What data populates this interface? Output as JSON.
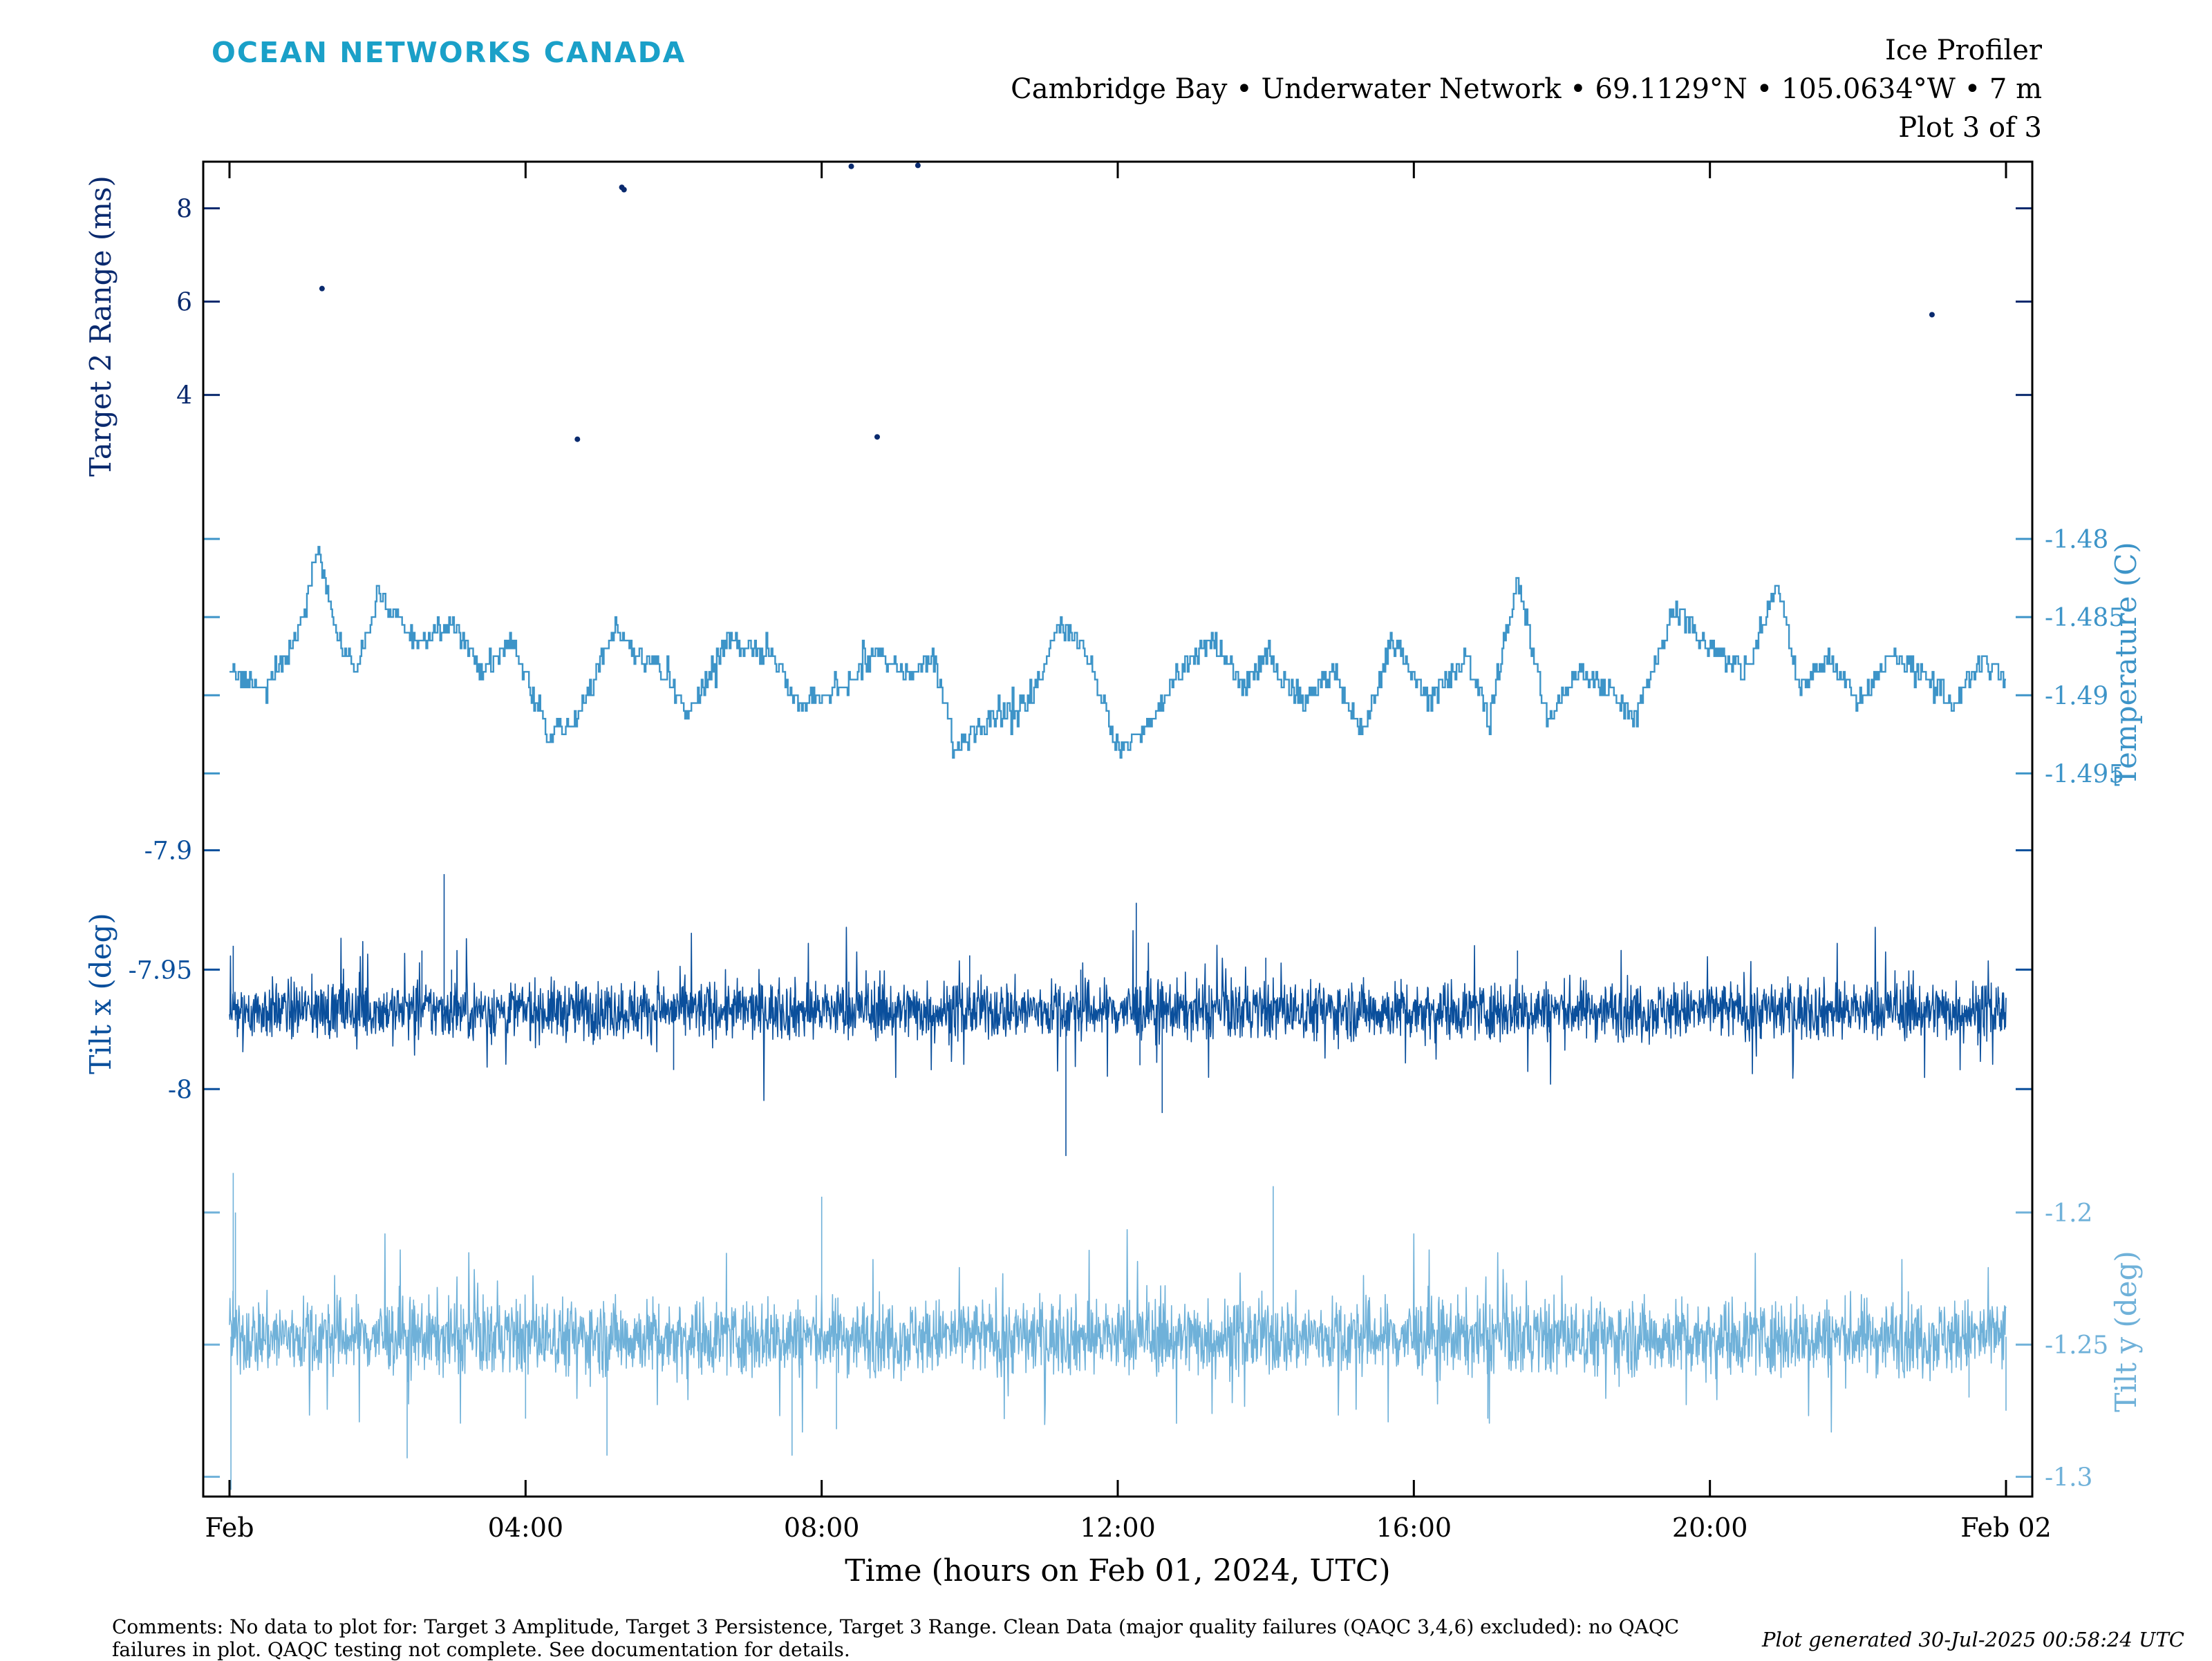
{
  "header": {
    "logo_text": "OCEAN NETWORKS CANADA",
    "instrument": "Ice Profiler",
    "location_line": "Cambridge Bay • Underwater Network • 69.1129°N • 105.0634°W • 7 m",
    "plot_index": "Plot 3 of 3"
  },
  "footer": {
    "comments": "Comments: No data to plot for: Target 3 Amplitude, Target 3 Persistence, Target 3 Range. Clean Data (major quality failures (QAQC 3,4,6) excluded): no QAQC failures in plot. QAQC testing not complete. See documentation for details.",
    "generated": "Plot generated 30-Jul-2025 00:58:24 UTC"
  },
  "colors": {
    "navy": "#0a2a6e",
    "temperature": "#3d94c8",
    "tilt_x": "#0a4f9c",
    "tilt_y": "#6fb1d9",
    "logo": "#1aa0c8"
  },
  "chart_data": {
    "type": "line",
    "xlabel": "Time (hours on Feb 01, 2024, UTC)",
    "x_range_hours": [
      0,
      24
    ],
    "x_ticks": [
      {
        "hour": 0,
        "label": "Feb"
      },
      {
        "hour": 4,
        "label": "04:00"
      },
      {
        "hour": 8,
        "label": "08:00"
      },
      {
        "hour": 12,
        "label": "12:00"
      },
      {
        "hour": 16,
        "label": "16:00"
      },
      {
        "hour": 20,
        "label": "20:00"
      },
      {
        "hour": 24,
        "label": "Feb 02"
      }
    ],
    "panels": [
      {
        "id": "target2",
        "ylabel": "Target 2 Range (ms)",
        "axis_side": "left",
        "color": "#0a2a6e",
        "ylim": [
          1.95,
          9.0
        ],
        "yticks": [
          4,
          6,
          8
        ],
        "ytick_labels": [
          "4",
          "6",
          "8"
        ],
        "style": "points",
        "points": [
          [
            1.25,
            6.28
          ],
          [
            4.7,
            3.05
          ],
          [
            5.3,
            8.45
          ],
          [
            5.33,
            8.4
          ],
          [
            8.4,
            8.9
          ],
          [
            8.75,
            3.1
          ],
          [
            9.3,
            8.92
          ],
          [
            23.0,
            5.72
          ]
        ]
      },
      {
        "id": "temperature",
        "ylabel": "Temperature (C)",
        "axis_side": "right",
        "color": "#3d94c8",
        "ylim": [
          -1.4975,
          -1.4785
        ],
        "yticks": [
          -1.48,
          -1.485,
          -1.49,
          -1.495
        ],
        "ytick_labels": [
          "-1.48",
          "-1.485",
          "-1.49",
          "-1.495"
        ],
        "style": "step",
        "anchors": [
          [
            0.0,
            -1.4885
          ],
          [
            0.5,
            -1.4895
          ],
          [
            0.9,
            -1.4865
          ],
          [
            1.2,
            -1.4805
          ],
          [
            1.4,
            -1.4855
          ],
          [
            1.7,
            -1.4885
          ],
          [
            2.0,
            -1.4835
          ],
          [
            2.5,
            -1.4865
          ],
          [
            3.0,
            -1.4855
          ],
          [
            3.4,
            -1.4885
          ],
          [
            3.8,
            -1.4865
          ],
          [
            4.3,
            -1.4925
          ],
          [
            4.7,
            -1.4915
          ],
          [
            5.2,
            -1.4855
          ],
          [
            5.5,
            -1.4875
          ],
          [
            5.9,
            -1.4885
          ],
          [
            6.2,
            -1.4915
          ],
          [
            6.7,
            -1.4865
          ],
          [
            7.3,
            -1.4875
          ],
          [
            7.7,
            -1.4905
          ],
          [
            8.3,
            -1.4895
          ],
          [
            8.7,
            -1.4875
          ],
          [
            9.2,
            -1.4885
          ],
          [
            9.5,
            -1.4875
          ],
          [
            9.8,
            -1.4935
          ],
          [
            10.3,
            -1.4915
          ],
          [
            10.8,
            -1.4905
          ],
          [
            11.2,
            -1.4855
          ],
          [
            11.6,
            -1.4875
          ],
          [
            12.0,
            -1.4935
          ],
          [
            12.5,
            -1.4915
          ],
          [
            12.8,
            -1.4885
          ],
          [
            13.3,
            -1.4865
          ],
          [
            13.7,
            -1.4895
          ],
          [
            14.0,
            -1.4875
          ],
          [
            14.5,
            -1.4905
          ],
          [
            14.9,
            -1.4885
          ],
          [
            15.3,
            -1.4925
          ],
          [
            15.7,
            -1.4865
          ],
          [
            16.2,
            -1.4905
          ],
          [
            16.7,
            -1.4875
          ],
          [
            17.0,
            -1.4915
          ],
          [
            17.4,
            -1.4825
          ],
          [
            17.8,
            -1.4915
          ],
          [
            18.2,
            -1.4885
          ],
          [
            18.6,
            -1.4895
          ],
          [
            19.0,
            -1.4915
          ],
          [
            19.5,
            -1.4845
          ],
          [
            20.1,
            -1.4875
          ],
          [
            20.5,
            -1.4885
          ],
          [
            20.9,
            -1.4825
          ],
          [
            21.2,
            -1.4895
          ],
          [
            21.6,
            -1.4875
          ],
          [
            22.0,
            -1.4905
          ],
          [
            22.4,
            -1.4875
          ],
          [
            22.9,
            -1.4885
          ],
          [
            23.3,
            -1.4905
          ],
          [
            23.7,
            -1.4875
          ],
          [
            24.0,
            -1.4895
          ]
        ]
      },
      {
        "id": "tilt_x",
        "ylabel": "Tilt x (deg)",
        "axis_side": "left",
        "color": "#0a4f9c",
        "ylim": [
          -8.03,
          -7.89
        ],
        "yticks": [
          -7.9,
          -7.95,
          -8.0
        ],
        "ytick_labels": [
          "-7.9",
          "-7.95",
          "-8"
        ],
        "style": "noise",
        "mean": -7.967,
        "amplitude": 0.012,
        "spikes": [
          [
            0.05,
            -7.94
          ],
          [
            1.7,
            -7.978
          ],
          [
            2.6,
            -7.942
          ],
          [
            2.9,
            -7.91
          ],
          [
            3.0,
            -7.95
          ],
          [
            6.0,
            -7.992
          ],
          [
            10.0,
            -7.944
          ],
          [
            11.3,
            -8.028
          ],
          [
            11.5,
            -7.95
          ],
          [
            12.25,
            -7.922
          ],
          [
            12.3,
            -7.99
          ],
          [
            12.6,
            -8.01
          ],
          [
            14.0,
            -7.945
          ],
          [
            17.4,
            -7.942
          ]
        ]
      },
      {
        "id": "tilt_y",
        "ylabel": "Tilt y (deg)",
        "axis_side": "right",
        "color": "#6fb1d9",
        "ylim": [
          -1.3075,
          -1.1825
        ],
        "yticks": [
          -1.2,
          -1.25,
          -1.3
        ],
        "ytick_labels": [
          "-1.2",
          "-1.25",
          "-1.3"
        ],
        "style": "noise",
        "mean": -1.247,
        "amplitude": 0.014,
        "spikes": [
          [
            0.02,
            -1.305
          ],
          [
            0.05,
            -1.185
          ],
          [
            0.08,
            -1.2
          ],
          [
            2.4,
            -1.293
          ],
          [
            4.0,
            -1.278
          ],
          [
            5.1,
            -1.292
          ],
          [
            7.6,
            -1.292
          ],
          [
            8.0,
            -1.194
          ],
          [
            8.2,
            -1.282
          ],
          [
            14.1,
            -1.19
          ],
          [
            17.0,
            -1.278
          ],
          [
            23.5,
            -1.27
          ],
          [
            24.0,
            -1.275
          ]
        ]
      }
    ]
  }
}
